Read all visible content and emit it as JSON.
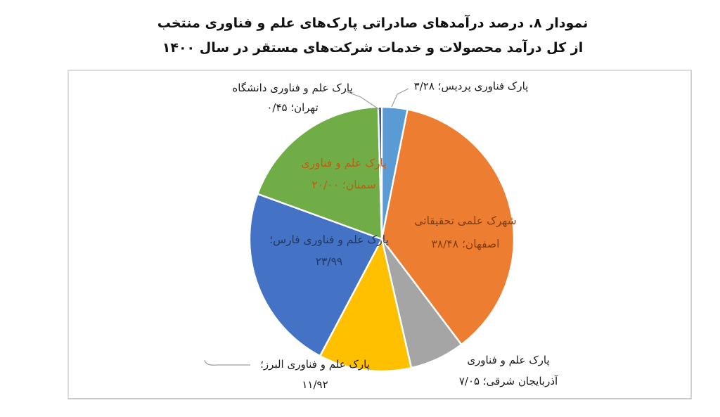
{
  "title": {
    "line1": "نمودار ۸. درصد درآمدهای صادراتی پارک‌های علم و فناوری منتخب",
    "line2": "از کل درآمد محصولات و خدمات شرکت‌های مستقر در سال ۱۴۰۰"
  },
  "chart_data": {
    "type": "pie",
    "title": "درصد درآمدهای صادراتی پارک‌های علم و فناوری منتخب از کل درآمد محصولات و خدمات شرکت‌های مستقر در سال ۱۴۰۰",
    "unit": "percent",
    "direction": "clockwise",
    "start_angle_deg": 0,
    "legend": "none",
    "slices": [
      {
        "id": "pardis",
        "name": "پارک فناوری پردیس",
        "value": 3.28,
        "value_fa": "۳/۲۸",
        "color": "#5B9BD5"
      },
      {
        "id": "esfahan",
        "name": "شهرک علمی تحقیقاتی اصفهان",
        "value": 38.48,
        "value_fa": "۳۸/۴۸",
        "color": "#ED7D31"
      },
      {
        "id": "azarbaijan-sharghi",
        "name": "پارک علم و فناوری آذربایجان شرقی",
        "value": 7.05,
        "value_fa": "۷/۰۵",
        "color": "#A5A5A5"
      },
      {
        "id": "alborz",
        "name": "پارک علم و فناوری البرز",
        "value": 11.92,
        "value_fa": "۱۱/۹۲",
        "color": "#FFC000"
      },
      {
        "id": "fars",
        "name": "پارک علم و فناوری فارس",
        "value": 23.99,
        "value_fa": "۲۳/۹۹",
        "color": "#4472C4"
      },
      {
        "id": "semnan",
        "name": "پارک علم و فناوری سمنان",
        "value": 20.0,
        "value_fa": "۲۰/۰۰",
        "color": "#70AD47"
      },
      {
        "id": "tehran-univ",
        "name": "پارک علم و فناوری دانشگاه تهران",
        "value": 0.45,
        "value_fa": "۰/۴۵",
        "color": "#264478"
      }
    ]
  },
  "callouts": {
    "pardis": {
      "line1": "پارک فناوری پردیس؛ ۳/۲۸",
      "text_color": "#1a1a1a"
    },
    "tehran": {
      "line1": "پارک علم و فناوری دانشگاه",
      "line2": "تهران؛ ۰/۴۵",
      "text_color": "#1a1a1a"
    },
    "semnan": {
      "line1": "پارک علم و فناوری",
      "line2": "سمنان؛ ۲۰/۰۰",
      "text_color": "#C55A11"
    },
    "fars": {
      "line1": "پارک علم و فناوری فارس؛",
      "line2": "۲۳/۹۹",
      "text_color": "#1F3864"
    },
    "esfahan": {
      "line1": "شهرک علمی تحقیقاتی",
      "line2": "اصفهان؛ ۳۸/۴۸",
      "text_color": "#843C0C"
    },
    "alborz": {
      "line1": "پارک علم و فناوری البرز؛",
      "line2": "۱۱/۹۲",
      "text_color": "#1a1a1a"
    },
    "azarbaijan": {
      "line1": "پارک علم و فناوری",
      "line2": "آذربایجان شرقی؛ ۷/۰۵",
      "text_color": "#1a1a1a"
    }
  },
  "style": {
    "leader_line_color": "#9e9e9e",
    "slice_gap_color": "#ffffff"
  }
}
